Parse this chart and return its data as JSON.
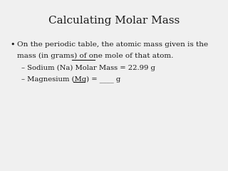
{
  "title": "Calculating Molar Mass",
  "title_fontsize": 11,
  "background_color": "#f0f0f0",
  "body_fontsize": 7.5,
  "sub_fontsize": 7.2,
  "bullet_char": "•",
  "line1": "On the periodic table, the atomic mass given is the",
  "line2_pre": "mass (in grams) of ",
  "line2_underline": "one mole",
  "line2_post": " of that atom.",
  "sub1": "– Sodium (Na) Molar Mass = 22.99 g",
  "sub2_pre": "– Magnesium (Mg) = ",
  "sub2_blank": "____",
  "sub2_post": " g",
  "text_color": "#1a1a1a"
}
